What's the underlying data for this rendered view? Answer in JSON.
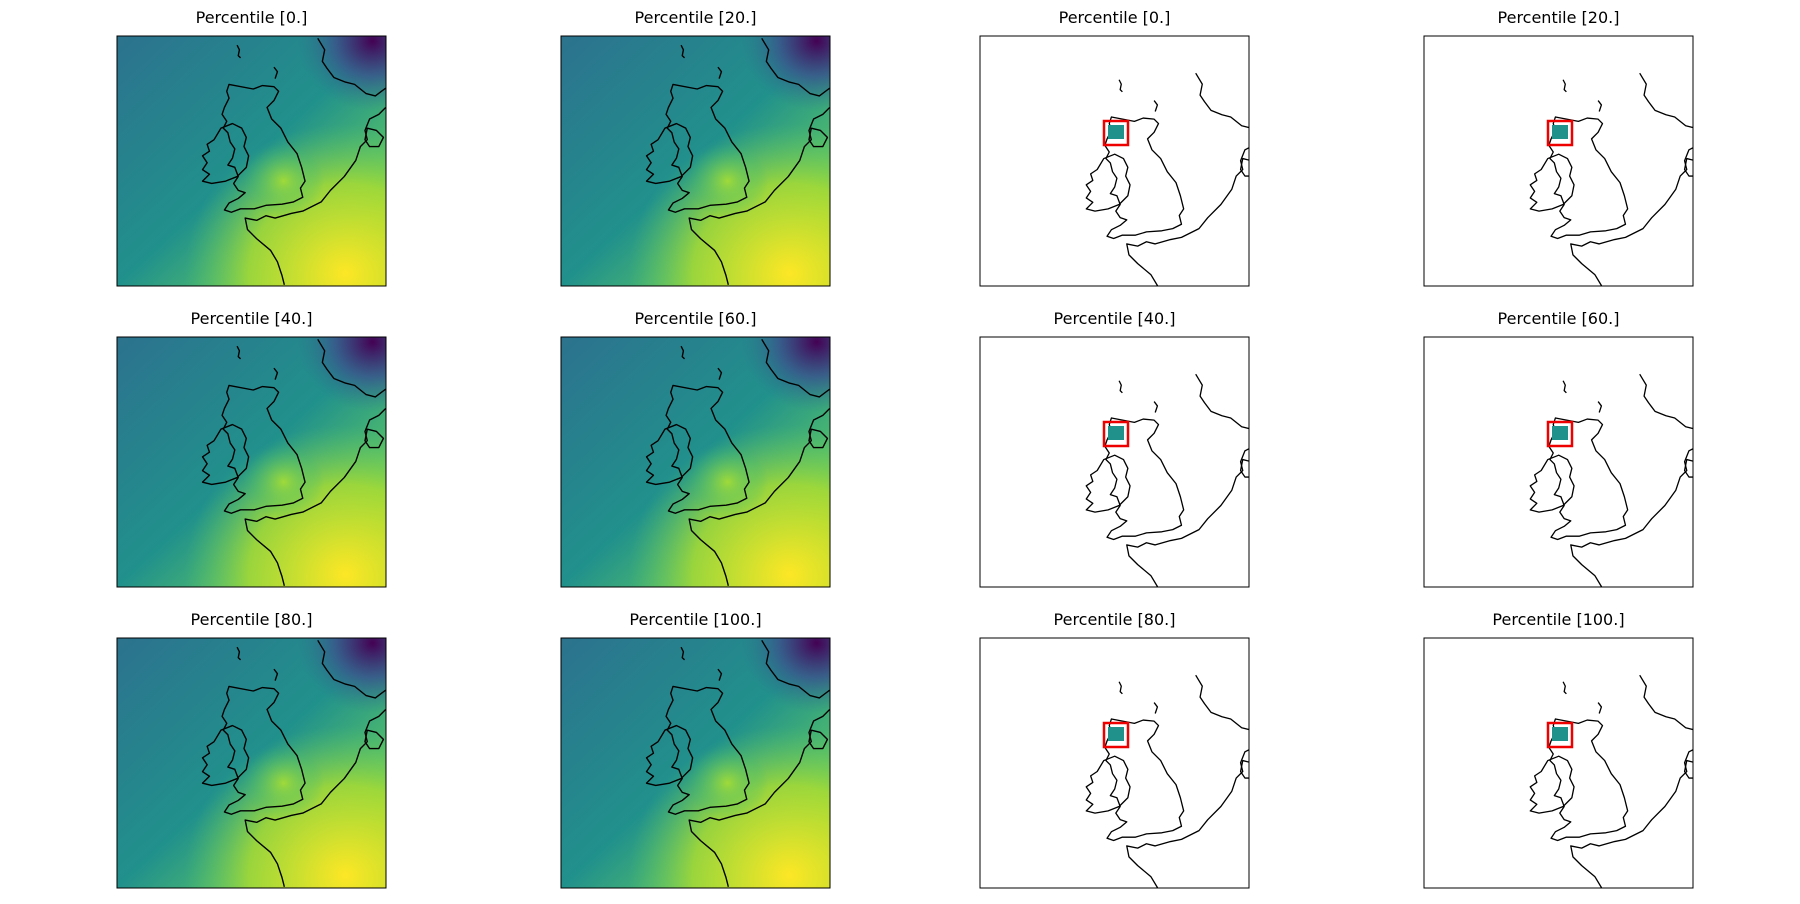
{
  "panels": [
    {
      "title": "Percentile [0.]",
      "style": "field"
    },
    {
      "title": "Percentile [20.]",
      "style": "field"
    },
    {
      "title": "Percentile [0.]",
      "style": "outline"
    },
    {
      "title": "Percentile [20.]",
      "style": "outline"
    },
    {
      "title": "Percentile [40.]",
      "style": "field"
    },
    {
      "title": "Percentile [60.]",
      "style": "field"
    },
    {
      "title": "Percentile [40.]",
      "style": "outline"
    },
    {
      "title": "Percentile [60.]",
      "style": "outline"
    },
    {
      "title": "Percentile [80.]",
      "style": "field"
    },
    {
      "title": "Percentile [100.]",
      "style": "field"
    },
    {
      "title": "Percentile [80.]",
      "style": "outline"
    },
    {
      "title": "Percentile [100.]",
      "style": "outline"
    }
  ]
}
